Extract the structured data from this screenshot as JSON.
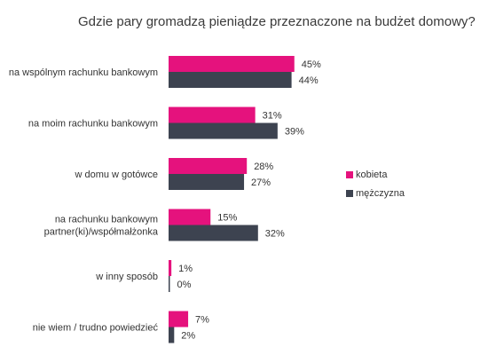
{
  "colors": {
    "kobieta": "#e5127d",
    "mezczyzna": "#3d4350"
  },
  "chart_data": {
    "type": "bar",
    "orientation": "horizontal",
    "title": "Gdzie pary gromadzą pieniądze przeznaczone na budżet domowy?",
    "categories": [
      [
        "na wspólnym rachunku bankowym"
      ],
      [
        "na moim rachunku bankowym"
      ],
      [
        "w domu w gotówce"
      ],
      [
        "na rachunku bankowym",
        "partner(ki)/współmałżonka"
      ],
      [
        "w inny sposób"
      ],
      [
        "nie wiem / trudno powiedzieć"
      ]
    ],
    "series": [
      {
        "name": "kobieta",
        "values": [
          45,
          31,
          28,
          15,
          1,
          7
        ]
      },
      {
        "name": "mężczyzna",
        "values": [
          44,
          39,
          27,
          32,
          0,
          2
        ]
      }
    ],
    "value_suffix": "%",
    "legend_position": "right",
    "grid": false
  }
}
